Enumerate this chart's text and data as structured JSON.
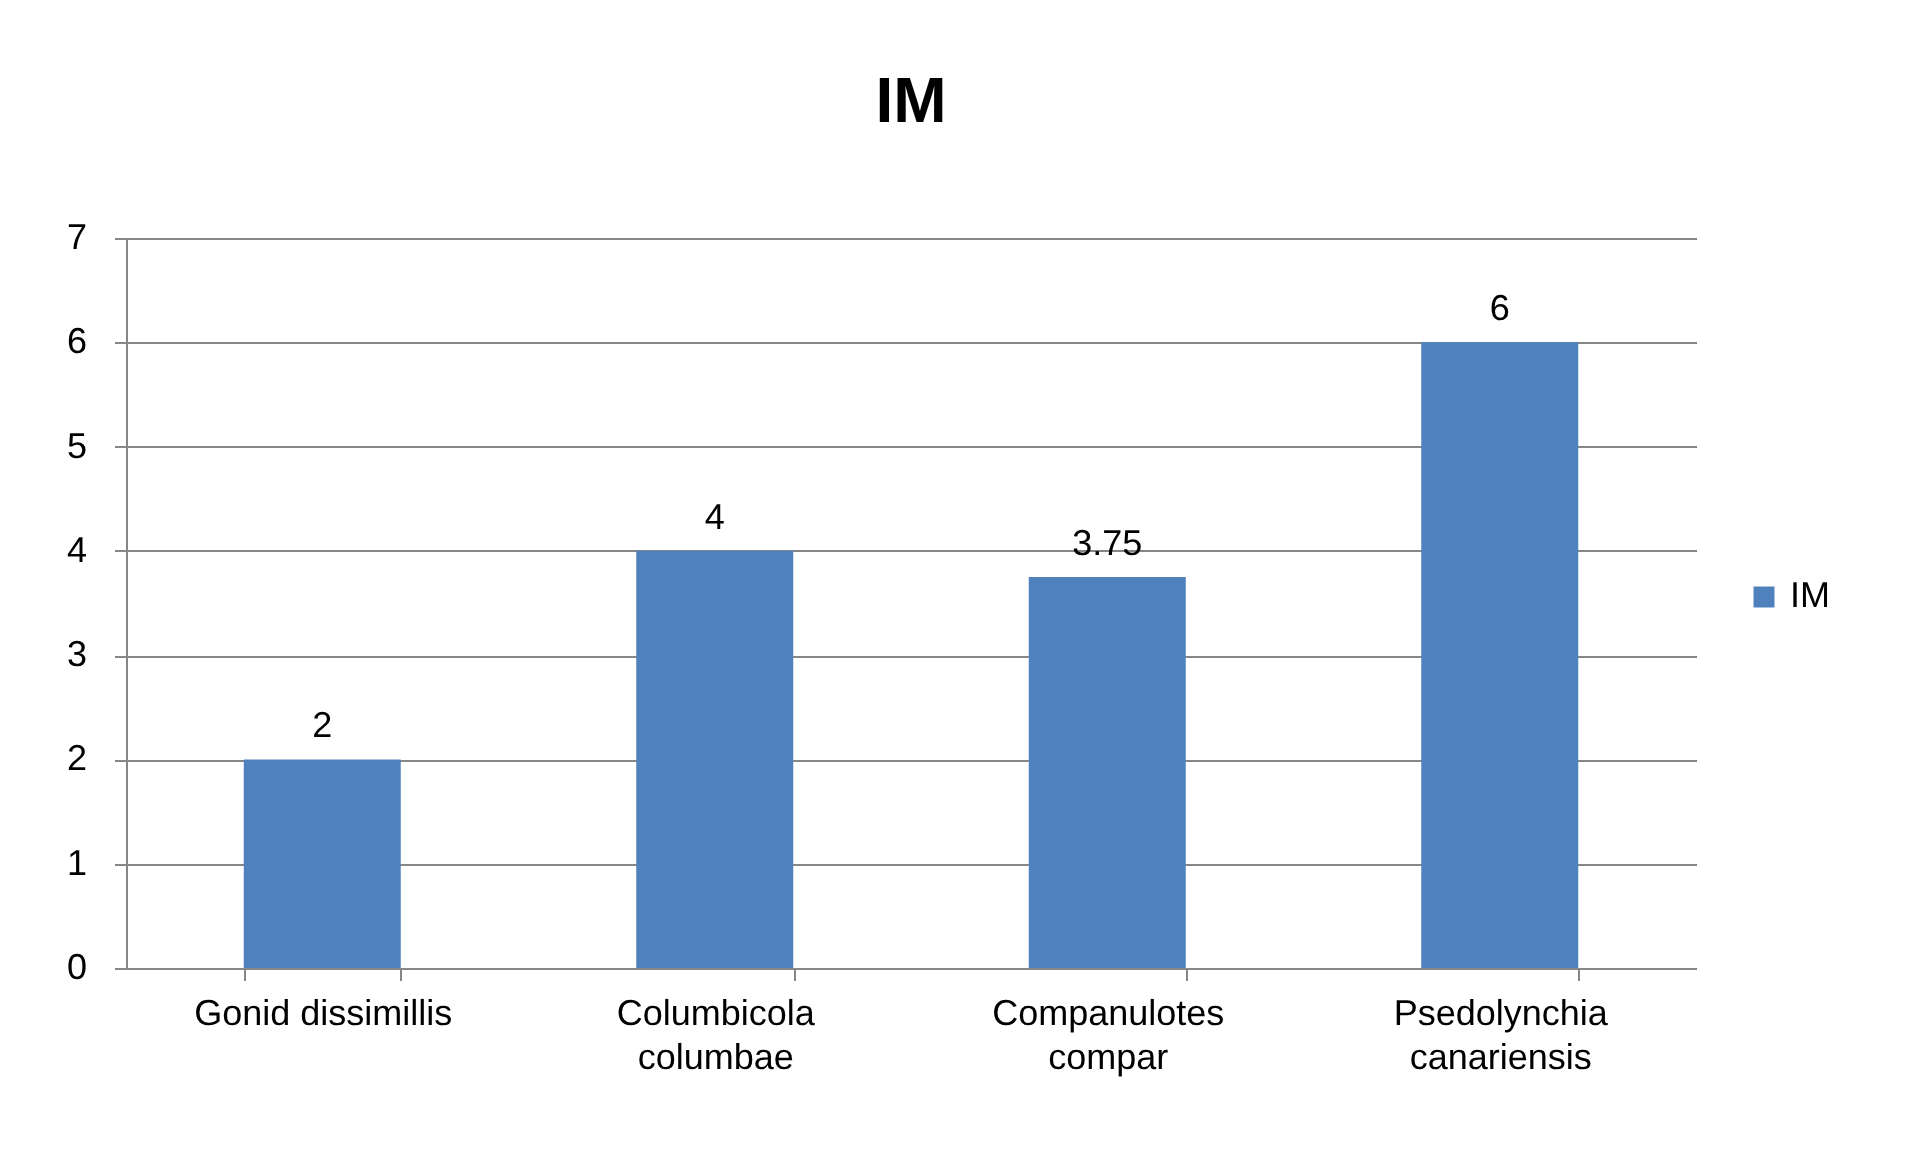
{
  "chart_data": {
    "type": "bar",
    "title": "IM",
    "categories": [
      "Gonid dissimillis",
      "Columbicola columbae",
      "Companulotes compar",
      "Psedolynchia canariensis"
    ],
    "series": [
      {
        "name": "IM",
        "color": "#4f81bd",
        "values": [
          2,
          4,
          3.75,
          6
        ]
      }
    ],
    "ylim": [
      0,
      7
    ],
    "yticks": [
      0,
      1,
      2,
      3,
      4,
      5,
      6,
      7
    ],
    "grid": "y",
    "legend": "right",
    "data_labels": true
  }
}
